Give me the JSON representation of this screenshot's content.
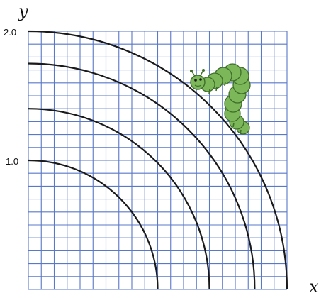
{
  "axes": {
    "x_label": "x",
    "y_label": "y"
  },
  "y_ticks": [
    "2.0",
    "1.0"
  ],
  "colors": {
    "grid": "#5a78c8",
    "arcs": "#1a1a1a",
    "caterpillar_body": "#7cb85a",
    "caterpillar_outline": "#3e6e2a",
    "background": "#ffffff"
  },
  "diagram": {
    "grid_divisions": 20,
    "grid_extent": 2.0,
    "arc_radii": [
      1.0,
      1.4,
      1.75,
      2.0
    ],
    "figure_icon": "caterpillar-icon"
  }
}
